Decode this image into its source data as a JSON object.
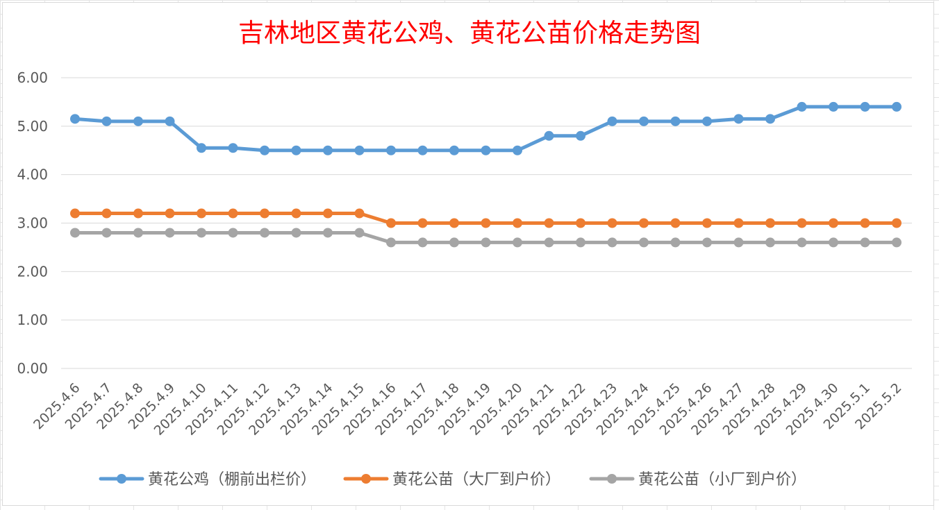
{
  "chart_data": {
    "type": "line",
    "title": "吉林地区黄花公鸡、黄花公苗价格走势图",
    "title_color": "#ff0000",
    "xlabel": "",
    "ylabel": "",
    "ylim": [
      0,
      6
    ],
    "y_ticks": [
      "0.00",
      "1.00",
      "2.00",
      "3.00",
      "4.00",
      "5.00",
      "6.00"
    ],
    "grid": "horizontal",
    "legend_position": "bottom",
    "categories": [
      "2025.4.6",
      "2025.4.7",
      "2025.4.8",
      "2025.4.9",
      "2025.4.10",
      "2025.4.11",
      "2025.4.12",
      "2025.4.13",
      "2025.4.14",
      "2025.4.15",
      "2025.4.16",
      "2025.4.17",
      "2025.4.18",
      "2025.4.19",
      "2025.4.20",
      "2025.4.21",
      "2025.4.22",
      "2025.4.23",
      "2025.4.24",
      "2025.4.25",
      "2025.4.26",
      "2025.4.27",
      "2025.4.28",
      "2025.4.29",
      "2025.4.30",
      "2025.5.1",
      "2025.5.2"
    ],
    "series": [
      {
        "name": "黄花公鸡（棚前出栏价）",
        "color": "#5b9bd5",
        "values": [
          5.15,
          5.1,
          5.1,
          5.1,
          4.55,
          4.55,
          4.5,
          4.5,
          4.5,
          4.5,
          4.5,
          4.5,
          4.5,
          4.5,
          4.5,
          4.8,
          4.8,
          5.1,
          5.1,
          5.1,
          5.1,
          5.15,
          5.15,
          5.4,
          5.4,
          5.4,
          5.4
        ]
      },
      {
        "name": "黄花公苗（大厂到户价）",
        "color": "#ed7d31",
        "values": [
          3.2,
          3.2,
          3.2,
          3.2,
          3.2,
          3.2,
          3.2,
          3.2,
          3.2,
          3.2,
          3.0,
          3.0,
          3.0,
          3.0,
          3.0,
          3.0,
          3.0,
          3.0,
          3.0,
          3.0,
          3.0,
          3.0,
          3.0,
          3.0,
          3.0,
          3.0,
          3.0
        ]
      },
      {
        "name": "黄花公苗（小厂到户价）",
        "color": "#a5a5a5",
        "values": [
          2.8,
          2.8,
          2.8,
          2.8,
          2.8,
          2.8,
          2.8,
          2.8,
          2.8,
          2.8,
          2.6,
          2.6,
          2.6,
          2.6,
          2.6,
          2.6,
          2.6,
          2.6,
          2.6,
          2.6,
          2.6,
          2.6,
          2.6,
          2.6,
          2.6,
          2.6,
          2.6
        ]
      }
    ]
  }
}
